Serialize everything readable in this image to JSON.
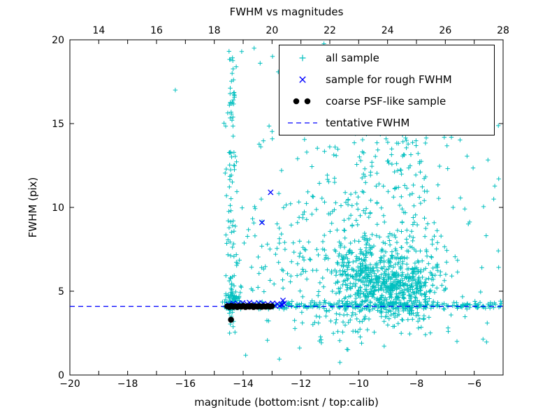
{
  "chart_data": {
    "type": "scatter",
    "title": "FWHM vs magnitudes",
    "xlabel": "magnitude (bottom:isnt / top:calib)",
    "ylabel": "FWHM (pix)",
    "xlim": [
      -20,
      -5
    ],
    "ylim": [
      0,
      20
    ],
    "grid": false,
    "legend_position": "upper right",
    "seed": 20240915,
    "axes": {
      "bottom_ticks": {
        "values": [
          -20,
          -18,
          -16,
          -14,
          -12,
          -10,
          -8,
          -6
        ],
        "labels": [
          "−20",
          "−18",
          "−16",
          "−14",
          "−12",
          "−10",
          "−8",
          "−6"
        ]
      },
      "top_ticks": {
        "values": [
          -19,
          -17,
          -15,
          -13,
          -11,
          -9,
          -7,
          -5
        ],
        "labels": [
          "14",
          "16",
          "18",
          "20",
          "22",
          "24",
          "26",
          "28"
        ]
      },
      "left_ticks": {
        "values": [
          0,
          5,
          10,
          15,
          20
        ],
        "labels": [
          "0",
          "5",
          "10",
          "15",
          "20"
        ]
      }
    },
    "tentative_fwhm": 4.1,
    "series": [
      {
        "name": "all sample",
        "marker": "plus",
        "color": "#00bfbf",
        "clusters": [
          {
            "n": 90,
            "x": {
              "dist": "gauss",
              "mean": -14.42,
              "sigma": 0.1
            },
            "y": {
              "dist": "uniform",
              "min": 2.3,
              "max": 19.6
            }
          },
          {
            "n": 60,
            "x": {
              "dist": "gauss",
              "mean": -14.35,
              "sigma": 0.15
            },
            "y": {
              "dist": "gauss",
              "mean": 4.4,
              "sigma": 0.3
            }
          },
          {
            "n": 70,
            "x": {
              "dist": "uniform",
              "min": -14.55,
              "max": -12.2
            },
            "y": {
              "dist": "gauss",
              "mean": 6.8,
              "sigma": 2.2
            }
          },
          {
            "n": 140,
            "x": {
              "dist": "uniform",
              "min": -12.2,
              "max": -9.6
            },
            "y": {
              "dist": "gauss",
              "mean": 6.5,
              "sigma": 2.6
            }
          },
          {
            "n": 120,
            "x": {
              "dist": "uniform",
              "min": -10.8,
              "max": -9.5
            },
            "y": {
              "dist": "gauss",
              "mean": 5.5,
              "sigma": 1.5
            }
          },
          {
            "n": 600,
            "x": {
              "dist": "gauss",
              "mean": -8.7,
              "sigma": 0.75
            },
            "y": {
              "dist": "gauss",
              "mean": 5.3,
              "sigma": 1.1
            }
          },
          {
            "n": 200,
            "x": {
              "dist": "gauss",
              "mean": -9.0,
              "sigma": 1.1
            },
            "y": {
              "dist": "uniform",
              "min": 7.0,
              "max": 15.8
            }
          },
          {
            "n": 280,
            "x": {
              "dist": "uniform",
              "min": -14.6,
              "max": -5.05
            },
            "y": {
              "dist": "gauss",
              "mean": 4.15,
              "sigma": 0.12
            }
          },
          {
            "n": 120,
            "x": {
              "dist": "uniform",
              "min": -13.5,
              "max": -5.05
            },
            "y": {
              "dist": "uniform",
              "min": 1.8,
              "max": 19.8
            }
          }
        ],
        "points": [
          [
            -16.35,
            17.0
          ],
          [
            -14.05,
            19.3
          ],
          [
            -13.62,
            19.5
          ],
          [
            -11.3,
            2.1
          ],
          [
            -9.9,
            1.9
          ],
          [
            -6.9,
            2.6
          ],
          [
            -5.55,
            3.1
          ],
          [
            -5.3,
            4.3
          ]
        ]
      },
      {
        "name": "sample for rough FWHM",
        "marker": "x",
        "color": "#0000ff",
        "points": [
          [
            -14.5,
            4.2
          ],
          [
            -14.42,
            4.15
          ],
          [
            -14.34,
            4.28
          ],
          [
            -14.26,
            4.12
          ],
          [
            -14.18,
            4.24
          ],
          [
            -14.1,
            4.16
          ],
          [
            -14.02,
            4.3
          ],
          [
            -13.94,
            4.12
          ],
          [
            -13.86,
            4.22
          ],
          [
            -13.78,
            4.32
          ],
          [
            -13.7,
            4.14
          ],
          [
            -13.62,
            4.25
          ],
          [
            -13.54,
            4.12
          ],
          [
            -13.46,
            4.3
          ],
          [
            -13.38,
            4.18
          ],
          [
            -13.3,
            4.25
          ],
          [
            -13.22,
            4.12
          ],
          [
            -13.14,
            4.22
          ],
          [
            -13.06,
            4.15
          ],
          [
            -12.98,
            4.28
          ],
          [
            -12.9,
            4.14
          ],
          [
            -12.82,
            4.24
          ],
          [
            -12.74,
            4.12
          ],
          [
            -12.66,
            4.2
          ],
          [
            -12.58,
            4.28
          ],
          [
            -12.62,
            4.45
          ],
          [
            -13.05,
            10.9
          ],
          [
            -13.35,
            9.1
          ]
        ]
      },
      {
        "name": "coarse PSF-like sample",
        "marker": "dot",
        "color": "#000000",
        "points": [
          [
            -14.55,
            4.1
          ],
          [
            -14.48,
            4.06
          ],
          [
            -14.41,
            4.12
          ],
          [
            -14.34,
            4.07
          ],
          [
            -14.27,
            4.11
          ],
          [
            -14.2,
            4.06
          ],
          [
            -14.13,
            4.11
          ],
          [
            -14.06,
            4.08
          ],
          [
            -13.99,
            4.12
          ],
          [
            -13.92,
            4.06
          ],
          [
            -13.85,
            4.1
          ],
          [
            -13.78,
            4.08
          ],
          [
            -13.71,
            4.12
          ],
          [
            -13.64,
            4.06
          ],
          [
            -13.57,
            4.1
          ],
          [
            -13.5,
            4.08
          ],
          [
            -13.43,
            4.11
          ],
          [
            -13.36,
            4.07
          ],
          [
            -13.29,
            4.1
          ],
          [
            -13.22,
            4.08
          ],
          [
            -13.15,
            4.11
          ],
          [
            -13.08,
            4.08
          ],
          [
            -13.01,
            4.1
          ],
          [
            -14.42,
            3.3
          ]
        ]
      },
      {
        "name": "tentative FWHM",
        "marker": "dashed",
        "color": "#0000ff",
        "y": 4.1
      }
    ]
  }
}
